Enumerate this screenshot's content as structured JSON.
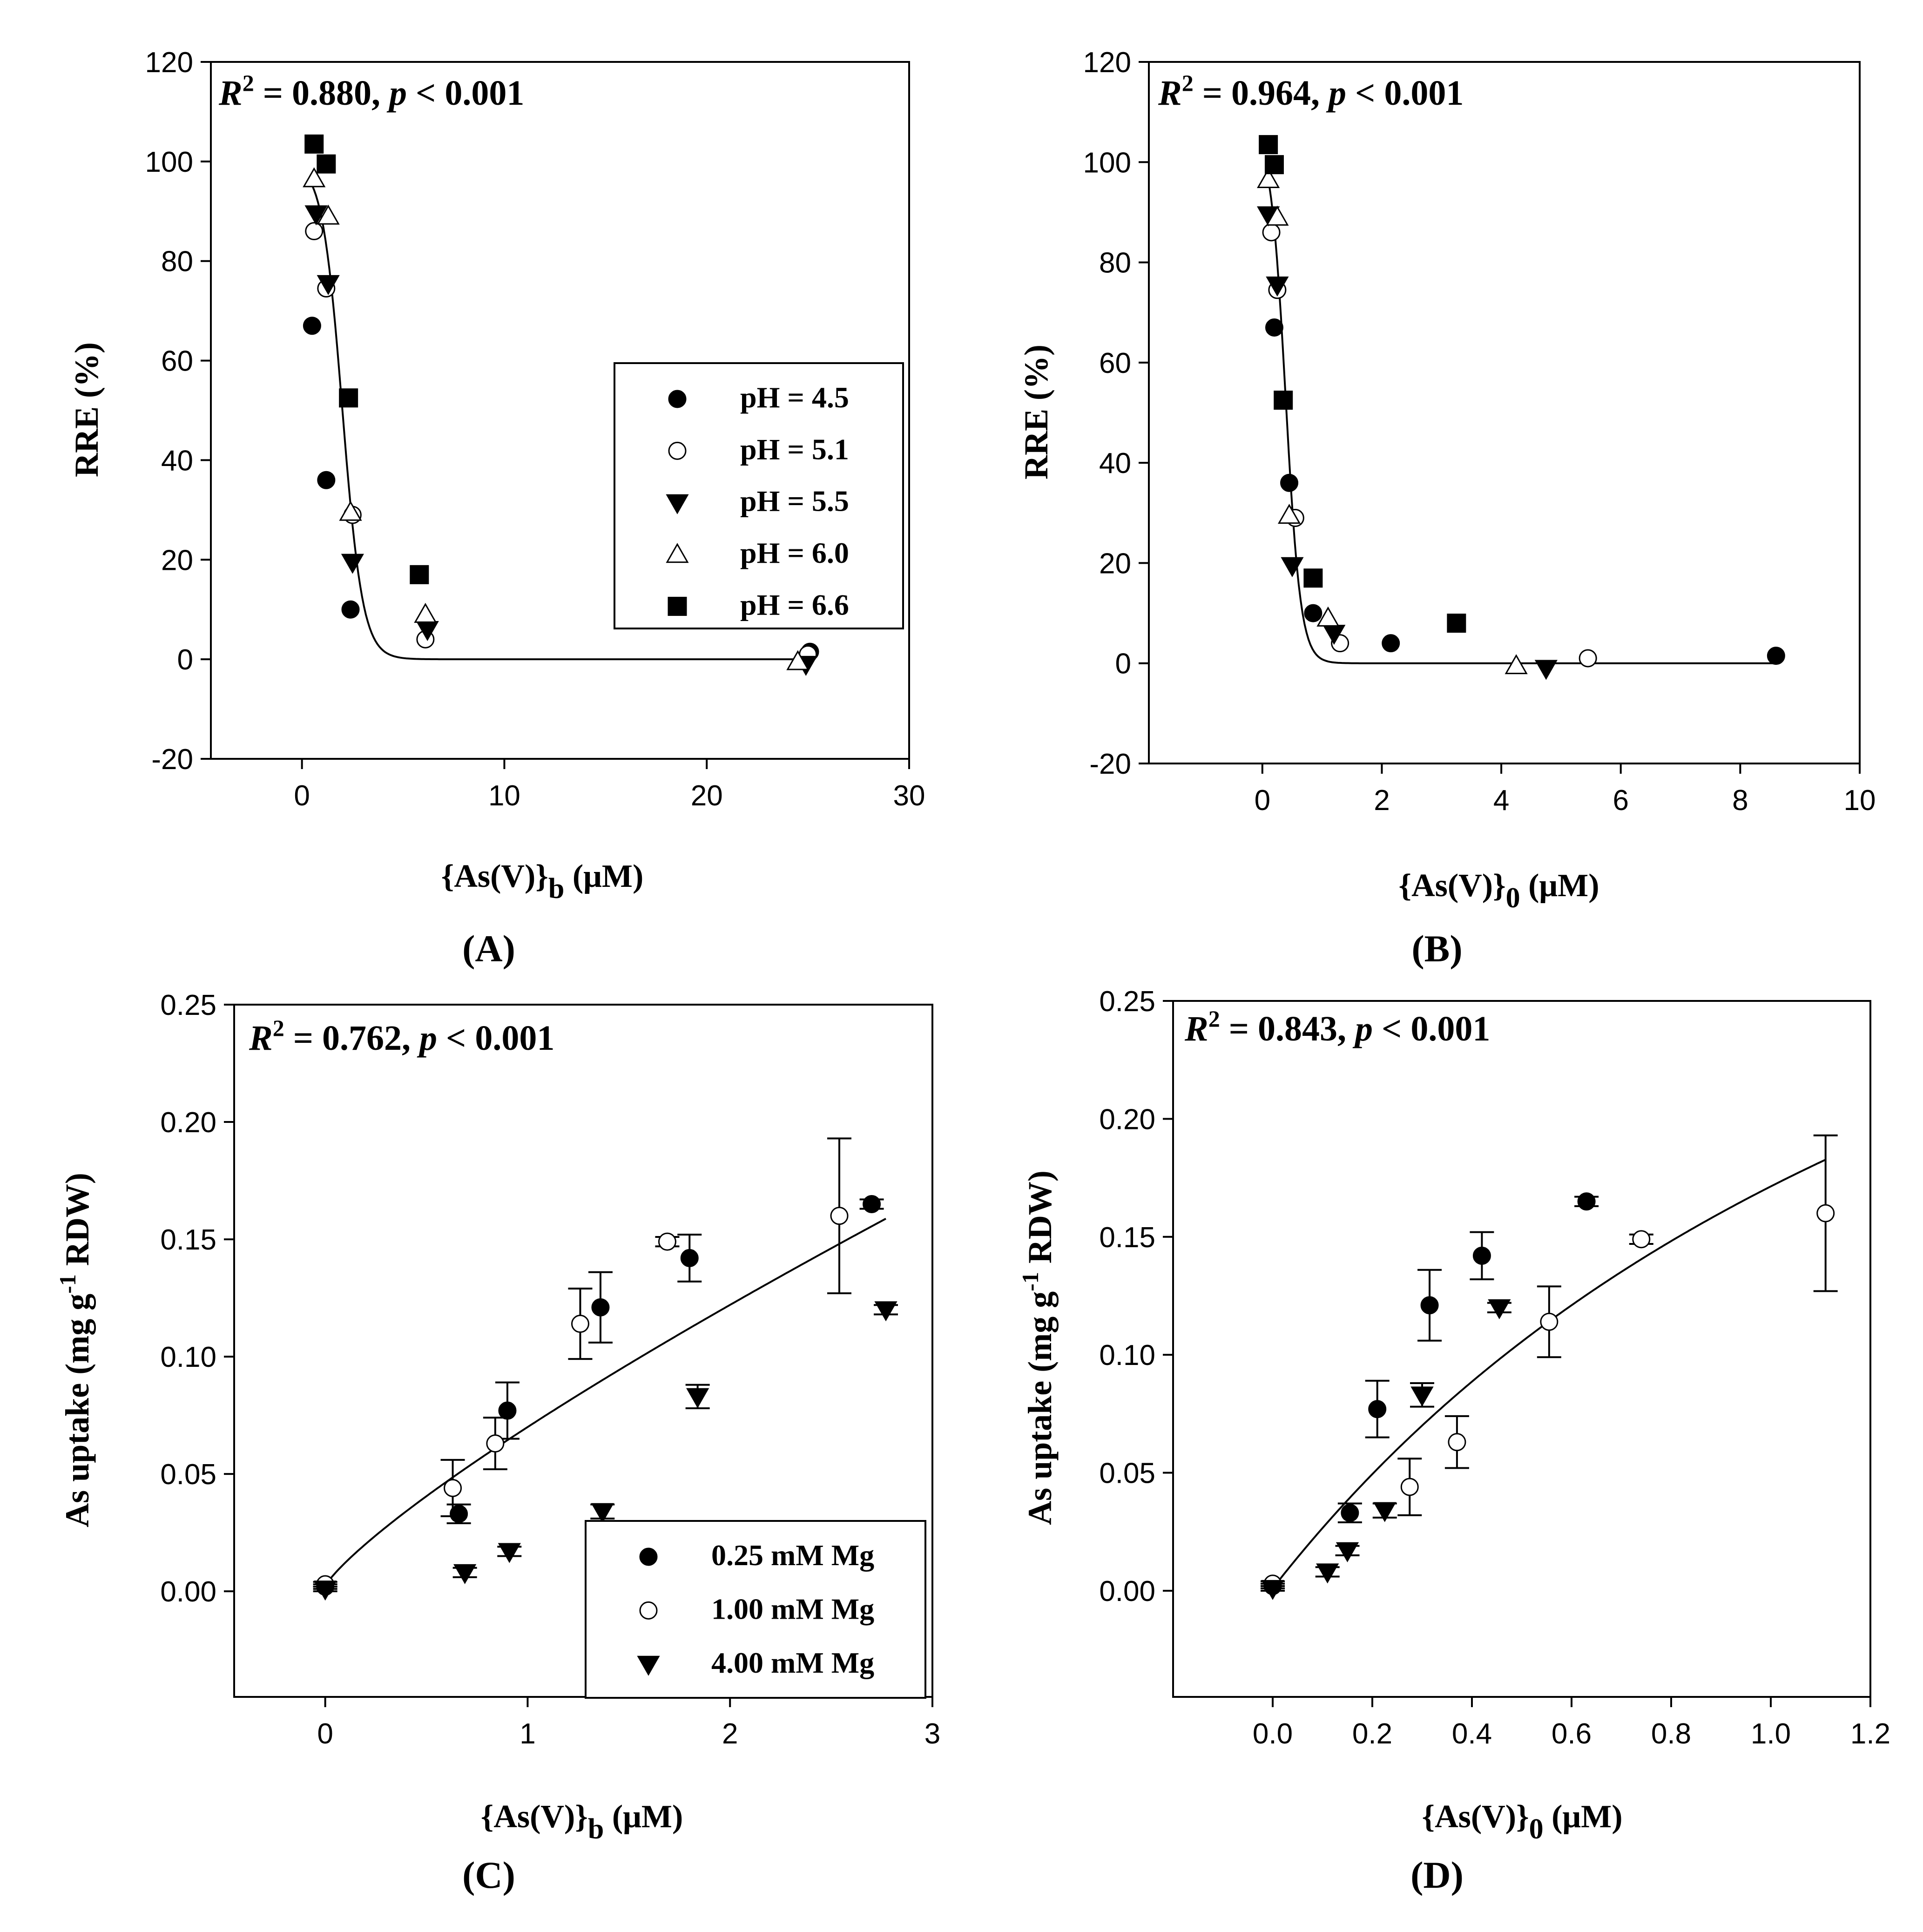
{
  "figure": {
    "panel_labels": [
      "(A)",
      "(B)",
      "(C)",
      "(D)"
    ]
  },
  "legend_ph": {
    "entries": [
      {
        "label": "pH = 4.5",
        "marker": "filled-circle"
      },
      {
        "label": "pH = 5.1",
        "marker": "open-circle"
      },
      {
        "label": "pH = 5.5",
        "marker": "filled-triangle-down"
      },
      {
        "label": "pH = 6.0",
        "marker": "open-triangle-up"
      },
      {
        "label": "pH = 6.6",
        "marker": "filled-square"
      }
    ]
  },
  "legend_mg": {
    "entries": [
      {
        "label": "0.25 mM Mg",
        "marker": "filled-circle"
      },
      {
        "label": "1.00 mM Mg",
        "marker": "open-circle"
      },
      {
        "label": "4.00 mM Mg",
        "marker": "filled-triangle-down"
      }
    ]
  },
  "colors": {
    "ink": "#000000",
    "fill_open": "#ffffff"
  },
  "chart_data": [
    {
      "id": "A",
      "type": "scatter",
      "panel_label": "(A)",
      "stat": {
        "r2": "0.880",
        "p": "0.001"
      },
      "xlabel": {
        "main": "{As(V)}",
        "sub": "b",
        "unit": " (μM)"
      },
      "ylabel": {
        "main": "RRE (%)"
      },
      "xlim": [
        -4.5,
        30
      ],
      "ylim": [
        -20,
        120
      ],
      "xticks": [
        0,
        10,
        20,
        30
      ],
      "xtick_labels": [
        "0",
        "10",
        "20",
        "30"
      ],
      "yticks": [
        -20,
        0,
        20,
        40,
        60,
        80,
        100,
        120
      ],
      "ytick_labels": [
        "-20",
        "0",
        "20",
        "40",
        "60",
        "80",
        "100",
        "120"
      ],
      "legend": "legend_ph",
      "series": [
        {
          "name": "pH = 4.5",
          "marker": "filled-circle",
          "points": [
            [
              0.5,
              67
            ],
            [
              1.2,
              36
            ],
            [
              2.4,
              10
            ],
            [
              25.1,
              1.5
            ]
          ]
        },
        {
          "name": "pH = 5.1",
          "marker": "open-circle",
          "points": [
            [
              0.6,
              86
            ],
            [
              1.2,
              74.5
            ],
            [
              2.5,
              29
            ],
            [
              6.1,
              4
            ],
            [
              25,
              1
            ]
          ]
        },
        {
          "name": "pH = 5.5",
          "marker": "filled-triangle-down",
          "points": [
            [
              0.7,
              89.5
            ],
            [
              1.3,
              75.5
            ],
            [
              2.5,
              19.5
            ],
            [
              6.2,
              6
            ],
            [
              24.9,
              -1
            ]
          ]
        },
        {
          "name": "pH = 6.0",
          "marker": "open-triangle-up",
          "points": [
            [
              0.6,
              96.5
            ],
            [
              1.3,
              89
            ],
            [
              2.4,
              29.5
            ],
            [
              6.1,
              9
            ],
            [
              24.5,
              -0.5
            ]
          ]
        },
        {
          "name": "pH = 6.6",
          "marker": "filled-square",
          "points": [
            [
              0.6,
              103.5
            ],
            [
              1.2,
              99.5
            ],
            [
              2.3,
              52.5
            ],
            [
              5.8,
              17
            ]
          ]
        }
      ],
      "fit": {
        "kind": "sigmoid",
        "a": 100,
        "x0": 2.0,
        "b": 0.5,
        "xrange": [
          0.5,
          25.2
        ]
      }
    },
    {
      "id": "B",
      "type": "scatter",
      "panel_label": "(B)",
      "stat": {
        "r2": "0.964",
        "p": "0.001"
      },
      "xlabel": {
        "main": "{As(V)}",
        "sub": "0",
        "unit": " (μM)"
      },
      "ylabel": {
        "main": "RRE (%)"
      },
      "xlim": [
        -1.9,
        10
      ],
      "ylim": [
        -20,
        120
      ],
      "xticks": [
        0,
        2,
        4,
        6,
        8,
        10
      ],
      "xtick_labels": [
        "0",
        "2",
        "4",
        "6",
        "8",
        "10"
      ],
      "yticks": [
        -20,
        0,
        20,
        40,
        60,
        80,
        100,
        120
      ],
      "ytick_labels": [
        "-20",
        "0",
        "20",
        "40",
        "60",
        "80",
        "100",
        "120"
      ],
      "legend": null,
      "series": [
        {
          "name": "pH = 4.5",
          "marker": "filled-circle",
          "points": [
            [
              0.2,
              67
            ],
            [
              0.45,
              36
            ],
            [
              0.85,
              10
            ],
            [
              2.15,
              4
            ],
            [
              8.6,
              1.5
            ]
          ]
        },
        {
          "name": "pH = 5.1",
          "marker": "open-circle",
          "points": [
            [
              0.15,
              86
            ],
            [
              0.25,
              74.5
            ],
            [
              0.55,
              29
            ],
            [
              1.3,
              4
            ],
            [
              5.45,
              1
            ]
          ]
        },
        {
          "name": "pH = 5.5",
          "marker": "filled-triangle-down",
          "points": [
            [
              0.1,
              89.5
            ],
            [
              0.25,
              75.5
            ],
            [
              0.5,
              19.5
            ],
            [
              1.2,
              6
            ],
            [
              4.75,
              -1
            ]
          ]
        },
        {
          "name": "pH = 6.0",
          "marker": "open-triangle-up",
          "points": [
            [
              0.1,
              96.5
            ],
            [
              0.25,
              89
            ],
            [
              0.45,
              29.5
            ],
            [
              1.1,
              9
            ],
            [
              4.25,
              -0.5
            ]
          ]
        },
        {
          "name": "pH = 6.6",
          "marker": "filled-square",
          "points": [
            [
              0.1,
              103.5
            ],
            [
              0.2,
              99.5
            ],
            [
              0.35,
              52.5
            ],
            [
              0.85,
              17
            ],
            [
              3.25,
              8
            ]
          ]
        }
      ],
      "fit": {
        "kind": "sigmoid",
        "a": 106,
        "x0": 0.39,
        "b": 0.125,
        "xrange": [
          0.08,
          8.65
        ]
      }
    },
    {
      "id": "C",
      "type": "scatter",
      "panel_label": "(C)",
      "stat": {
        "r2": "0.762",
        "p": "0.001"
      },
      "xlabel": {
        "main": "{As(V)}",
        "sub": "b",
        "unit": " (μM)"
      },
      "ylabel": {
        "main": "As uptake (mg g",
        "sup": "-1",
        "tail": " RDW)"
      },
      "xlim": [
        -0.45,
        3
      ],
      "ylim": [
        -0.045,
        0.25
      ],
      "xticks": [
        0,
        1,
        2,
        3
      ],
      "xtick_labels": [
        "0",
        "1",
        "2",
        "3"
      ],
      "yticks": [
        0,
        0.05,
        0.1,
        0.15,
        0.2,
        0.25
      ],
      "ytick_labels": [
        "0.00",
        "0.05",
        "0.10",
        "0.15",
        "0.20",
        "0.25"
      ],
      "legend": "legend_mg",
      "series": [
        {
          "name": "0.25 mM Mg",
          "marker": "filled-circle",
          "points": [
            [
              0,
              0.002,
              0.001
            ],
            [
              0.66,
              0.033,
              0.004
            ],
            [
              0.9,
              0.077,
              0.012
            ],
            [
              1.36,
              0.121,
              0.015
            ],
            [
              1.8,
              0.142,
              0.01
            ],
            [
              2.7,
              0.165,
              0.002
            ]
          ]
        },
        {
          "name": "1.00 mM Mg",
          "marker": "open-circle",
          "points": [
            [
              0,
              0.003,
              0.001
            ],
            [
              0.63,
              0.044,
              0.012
            ],
            [
              0.84,
              0.063,
              0.011
            ],
            [
              1.26,
              0.114,
              0.015
            ],
            [
              1.69,
              0.149,
              0.002
            ],
            [
              2.54,
              0.16,
              0.033
            ]
          ]
        },
        {
          "name": "4.00 mM Mg",
          "marker": "filled-triangle-down",
          "points": [
            [
              0,
              0.001,
              0.001
            ],
            [
              0.69,
              0.008,
              0.002
            ],
            [
              0.91,
              0.017,
              0.002
            ],
            [
              1.37,
              0.034,
              0.003
            ],
            [
              1.84,
              0.083,
              0.005
            ],
            [
              2.77,
              0.12,
              0.002
            ]
          ]
        }
      ],
      "fit": {
        "kind": "power",
        "a": 0.068,
        "b": 0.82,
        "c": 0.002,
        "xrange": [
          0,
          2.77
        ]
      }
    },
    {
      "id": "D",
      "type": "scatter",
      "panel_label": "(D)",
      "stat": {
        "r2": "0.843",
        "p": "0.001"
      },
      "xlabel": {
        "main": "{As(V)}",
        "sub": "0",
        "unit": " (μM)"
      },
      "ylabel": {
        "main": "As uptake (mg g",
        "sup": "-1",
        "tail": " RDW)"
      },
      "xlim": [
        -0.2,
        1.2
      ],
      "ylim": [
        -0.045,
        0.25
      ],
      "xticks": [
        0,
        0.2,
        0.4,
        0.6,
        0.8,
        1.0,
        1.2
      ],
      "xtick_labels": [
        "0.0",
        "0.2",
        "0.4",
        "0.6",
        "0.8",
        "1.0",
        "1.2"
      ],
      "yticks": [
        0,
        0.05,
        0.1,
        0.15,
        0.2,
        0.25
      ],
      "ytick_labels": [
        "0.00",
        "0.05",
        "0.10",
        "0.15",
        "0.20",
        "0.25"
      ],
      "legend": null,
      "series": [
        {
          "name": "0.25 mM Mg",
          "marker": "filled-circle",
          "points": [
            [
              0,
              0.002,
              0.001
            ],
            [
              0.155,
              0.033,
              0.004
            ],
            [
              0.21,
              0.077,
              0.012
            ],
            [
              0.315,
              0.121,
              0.015
            ],
            [
              0.42,
              0.142,
              0.01
            ],
            [
              0.63,
              0.165,
              0.002
            ]
          ]
        },
        {
          "name": "1.00 mM Mg",
          "marker": "open-circle",
          "points": [
            [
              0,
              0.003,
              0.001
            ],
            [
              0.275,
              0.044,
              0.012
            ],
            [
              0.37,
              0.063,
              0.011
            ],
            [
              0.555,
              0.114,
              0.015
            ],
            [
              0.74,
              0.149,
              0.002
            ],
            [
              1.11,
              0.16,
              0.033
            ]
          ]
        },
        {
          "name": "4.00 mM Mg",
          "marker": "filled-triangle-down",
          "points": [
            [
              0,
              0.001,
              0.001
            ],
            [
              0.11,
              0.008,
              0.002
            ],
            [
              0.15,
              0.017,
              0.002
            ],
            [
              0.225,
              0.034,
              0.003
            ],
            [
              0.3,
              0.083,
              0.005
            ],
            [
              0.455,
              0.12,
              0.002
            ]
          ]
        }
      ],
      "fit": {
        "kind": "mm",
        "a": 0.46,
        "k": 1.7,
        "c": 0.001,
        "xrange": [
          0,
          1.11
        ]
      }
    }
  ]
}
